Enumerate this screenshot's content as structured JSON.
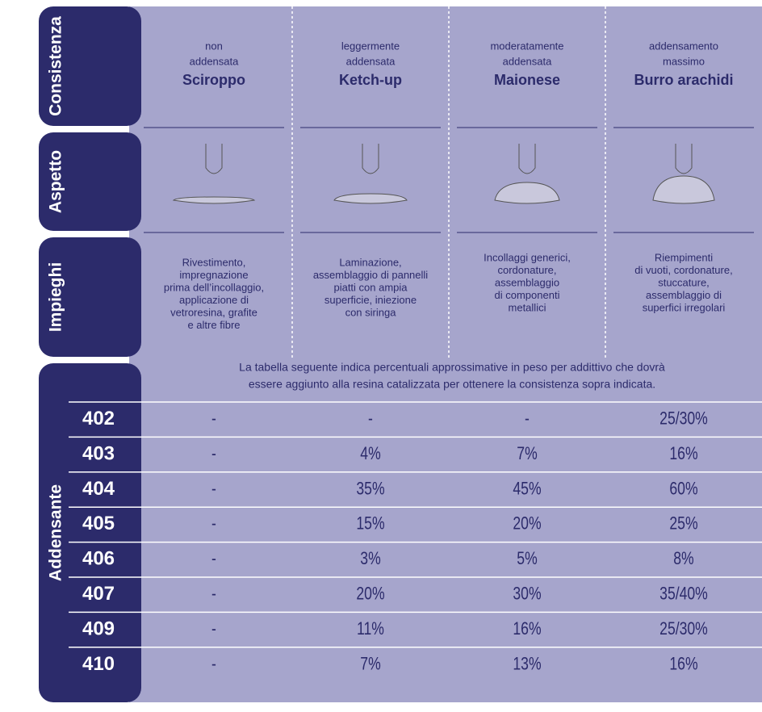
{
  "sections": {
    "consistency": "Consistenza",
    "appearance": "Aspetto",
    "uses": "Impieghi",
    "thickener": "Addensante"
  },
  "columns": [
    {
      "description": [
        "non",
        "addensata"
      ],
      "name": "Sciroppo",
      "uses": [
        "Rivestimento,",
        "impregnazione",
        "prima dell’incollaggio,",
        "applicazione di",
        "vetroresina, grafite",
        "e altre fibre"
      ]
    },
    {
      "description": [
        "leggermente",
        "addensata"
      ],
      "name": "Ketch-up",
      "uses": [
        "Laminazione,",
        "assemblaggio di pannelli",
        "piatti con ampia",
        "superficie, iniezione",
        "con siringa"
      ]
    },
    {
      "description": [
        "moderatamente",
        "addensata"
      ],
      "name": "Maionese",
      "uses": [
        "Incollaggi generici,",
        "cordonature,",
        "assemblaggio",
        "di componenti",
        "metallici"
      ]
    },
    {
      "description": [
        "addensamento",
        "massimo"
      ],
      "name": "Burro arachidi",
      "uses": [
        "Riempimenti",
        "di vuoti, cordonature,",
        "stuccature,",
        "assemblaggio di",
        "superfici irregolari"
      ]
    }
  ],
  "note": [
    "La tabella seguente indica percentuali approssimative in peso per addittivo che dovrà",
    "essere aggiunto alla resina catalizzata per ottenere la consistenza sopra indicata."
  ],
  "table": {
    "rows": [
      {
        "code": "402",
        "values": [
          "-",
          "-",
          "-",
          "25/30%"
        ]
      },
      {
        "code": "403",
        "values": [
          "-",
          "4%",
          "7%",
          "16%"
        ]
      },
      {
        "code": "404",
        "values": [
          "-",
          "35%",
          "45%",
          "60%"
        ]
      },
      {
        "code": "405",
        "values": [
          "-",
          "15%",
          "20%",
          "25%"
        ]
      },
      {
        "code": "406",
        "values": [
          "-",
          "3%",
          "5%",
          "8%"
        ]
      },
      {
        "code": "407",
        "values": [
          "-",
          "20%",
          "30%",
          "35/40%"
        ]
      },
      {
        "code": "409",
        "values": [
          "-",
          "11%",
          "16%",
          "25/30%"
        ]
      },
      {
        "code": "410",
        "values": [
          "-",
          "7%",
          "13%",
          "16%"
        ]
      }
    ]
  }
}
